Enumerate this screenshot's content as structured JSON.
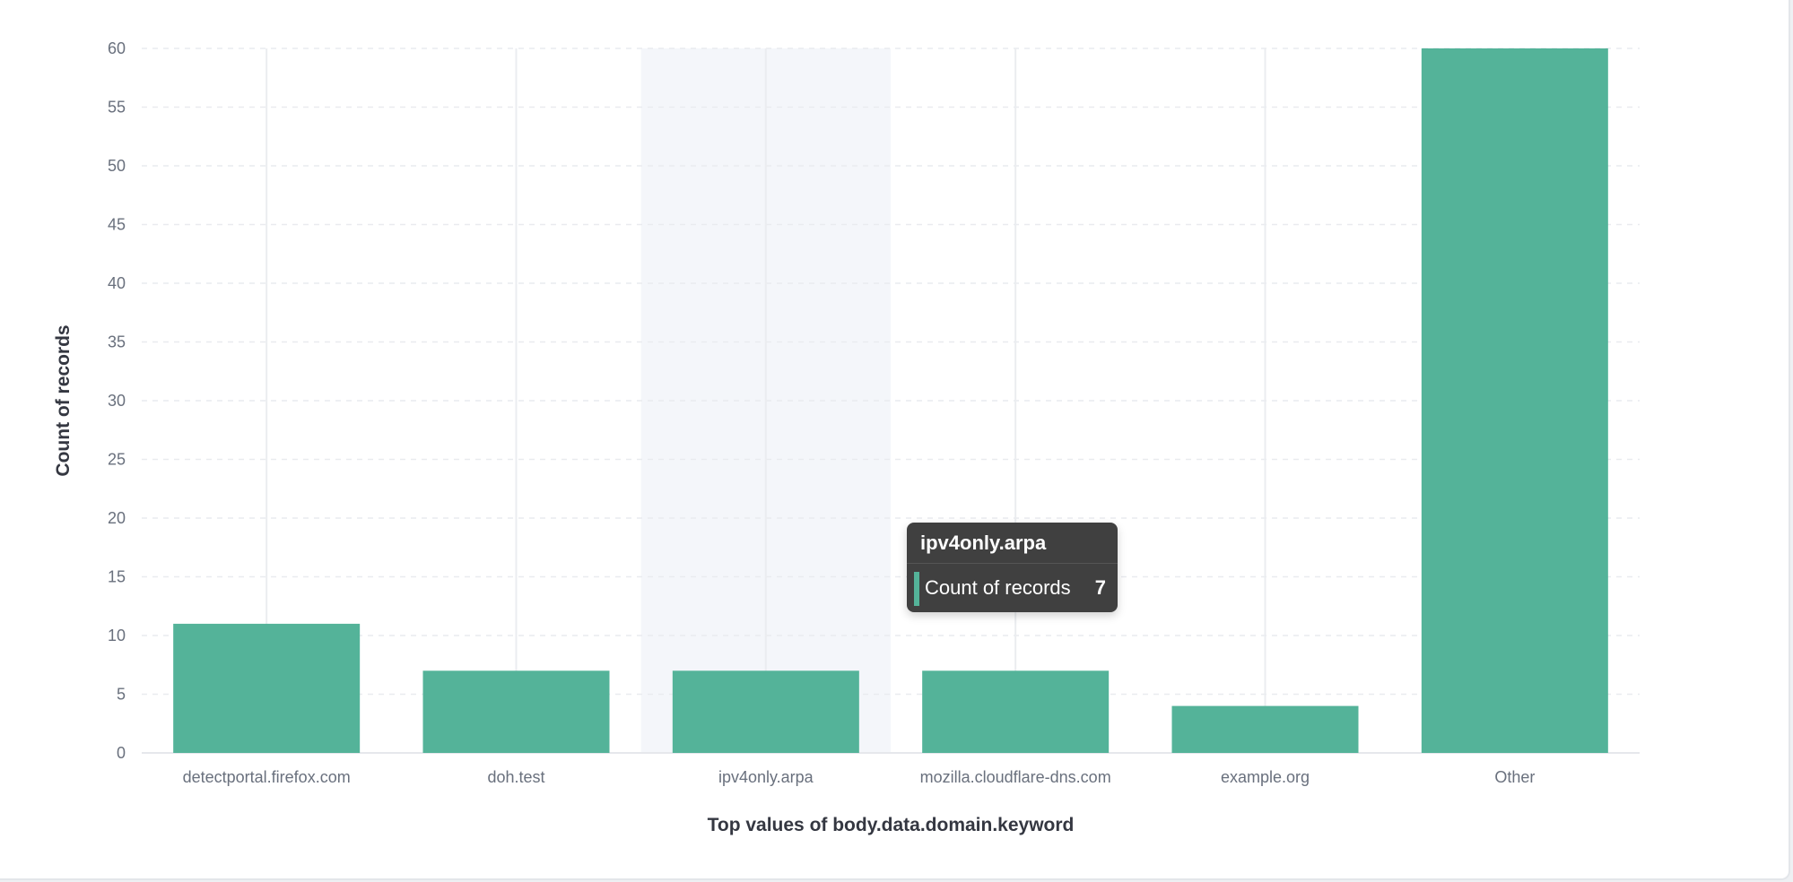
{
  "chart_data": {
    "type": "bar",
    "categories": [
      "detectportal.firefox.com",
      "doh.test",
      "ipv4only.arpa",
      "mozilla.cloudflare-dns.com",
      "example.org",
      "Other"
    ],
    "series": [
      {
        "name": "Count of records",
        "values": [
          11,
          7,
          7,
          7,
          4,
          60
        ]
      }
    ],
    "xlabel": "Top values of body.data.domain.keyword",
    "ylabel": "Count of records",
    "ylim": [
      0,
      60
    ],
    "yticks": [
      0,
      5,
      10,
      15,
      20,
      25,
      30,
      35,
      40,
      45,
      50,
      55,
      60
    ],
    "grid": true,
    "highlighted_category": "ipv4only.arpa",
    "bar_color": "#54b399"
  },
  "tooltip": {
    "title": "ipv4only.arpa",
    "label": "Count of records",
    "value": "7",
    "swatch_color": "#54b399"
  }
}
